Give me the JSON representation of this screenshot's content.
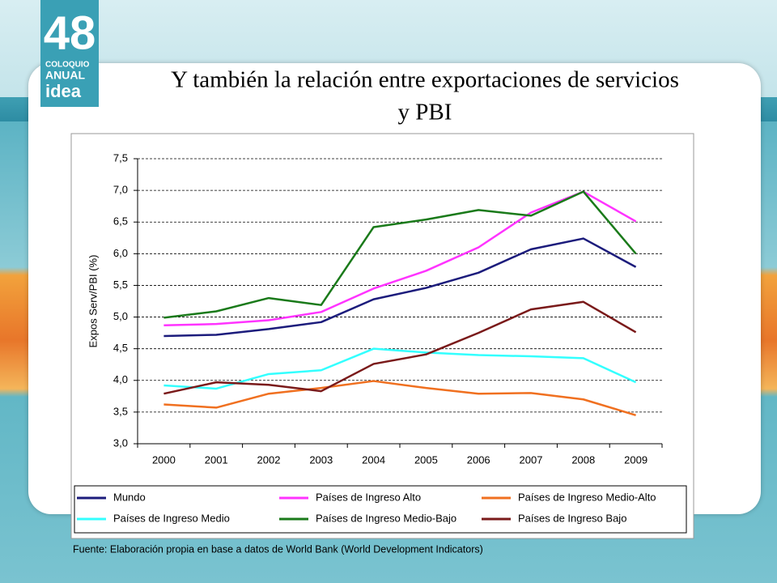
{
  "logo": {
    "number": "48",
    "line1": "COLOQUIO",
    "line2": "ANUAL",
    "line3": "idea"
  },
  "chart_data": {
    "type": "line",
    "title": [
      "Y también la relación entre exportaciones de servicios",
      "y PBI"
    ],
    "y_label": "Expos Serv/PBI (%)",
    "source": "Fuente: Elaboración propia en base a datos de World Bank (World Development Indicators)",
    "categories": [
      "2000",
      "2001",
      "2002",
      "2003",
      "2004",
      "2005",
      "2006",
      "2007",
      "2008",
      "2009"
    ],
    "ylim": [
      3.0,
      7.5
    ],
    "yticks": [
      {
        "value": 3.0,
        "label": "3,0"
      },
      {
        "value": 3.5,
        "label": "3,5"
      },
      {
        "value": 4.0,
        "label": "4,0"
      },
      {
        "value": 4.5,
        "label": "4,5"
      },
      {
        "value": 5.0,
        "label": "5,0"
      },
      {
        "value": 5.5,
        "label": "5,5"
      },
      {
        "value": 6.0,
        "label": "6,0"
      },
      {
        "value": 6.5,
        "label": "6,5"
      },
      {
        "value": 7.0,
        "label": "7,0"
      },
      {
        "value": 7.5,
        "label": "7,5"
      }
    ],
    "grid": true,
    "series": [
      {
        "name": "Mundo",
        "color": "#1c1c7c",
        "values": [
          4.7,
          4.72,
          4.81,
          4.92,
          5.28,
          5.46,
          5.7,
          6.07,
          6.24,
          5.79
        ]
      },
      {
        "name": "Países de Ingreso Alto",
        "color": "#ff33ff",
        "values": [
          4.87,
          4.89,
          4.95,
          5.08,
          5.45,
          5.73,
          6.1,
          6.65,
          6.98,
          6.51
        ]
      },
      {
        "name": "Países de Ingreso Medio-Alto",
        "color": "#f07020",
        "values": [
          3.62,
          3.57,
          3.79,
          3.88,
          3.99,
          3.88,
          3.79,
          3.8,
          3.7,
          3.45
        ]
      },
      {
        "name": "Países de Ingreso Medio",
        "color": "#33ffff",
        "values": [
          3.92,
          3.87,
          4.1,
          4.16,
          4.5,
          4.44,
          4.4,
          4.38,
          4.35,
          3.97
        ]
      },
      {
        "name": "Países de Ingreso Medio-Bajo",
        "color": "#1a7a1a",
        "values": [
          4.99,
          5.09,
          5.3,
          5.19,
          6.42,
          6.54,
          6.69,
          6.6,
          6.98,
          6.0
        ]
      },
      {
        "name": "Países de Ingreso Bajo",
        "color": "#7a1a1a",
        "values": [
          3.79,
          3.97,
          3.93,
          3.83,
          4.26,
          4.41,
          4.75,
          5.12,
          5.24,
          4.76
        ]
      }
    ]
  }
}
